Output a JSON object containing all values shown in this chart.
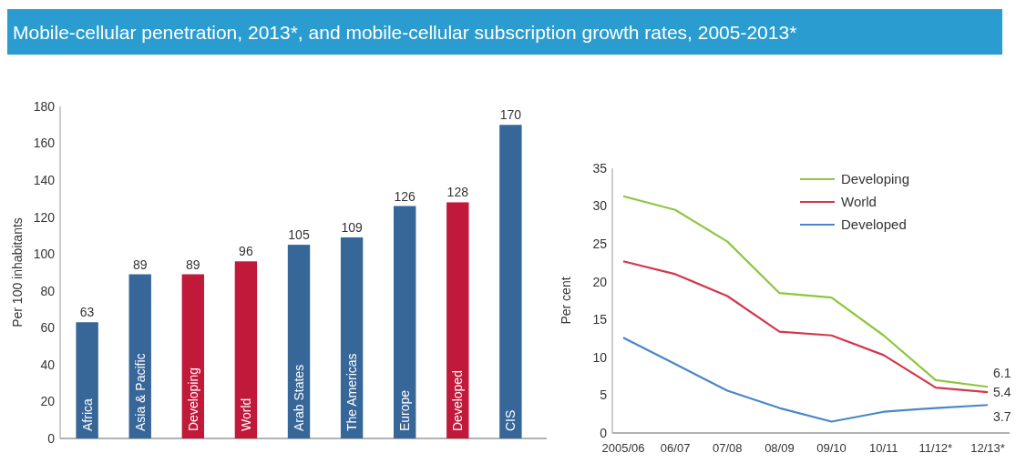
{
  "chart_data": [
    {
      "type": "bar",
      "title": "Mobile-cellular penetration, 2013*, and mobile-cellular subscription growth rates, 2005-2013*",
      "ylabel": "Per 100 inhabitants",
      "categories": [
        "Africa",
        "Asia & Pacific",
        "Developing",
        "World",
        "Arab States",
        "The Americas",
        "Europe",
        "Developed",
        "CIS"
      ],
      "values": [
        63,
        89,
        89,
        96,
        105,
        109,
        126,
        128,
        170
      ],
      "colors": [
        "#376699",
        "#376699",
        "#c0193a",
        "#c0193a",
        "#376699",
        "#376699",
        "#376699",
        "#c0193a",
        "#376699"
      ],
      "ylim": [
        0,
        180
      ],
      "yticks": [
        0,
        20,
        40,
        60,
        80,
        100,
        120,
        140,
        160,
        180
      ],
      "data_labels": true
    },
    {
      "type": "line",
      "ylabel": "Per cent",
      "categories": [
        "2005/06",
        "06/07",
        "07/08",
        "08/09",
        "09/10",
        "10/11",
        "11/12*",
        "12/13*"
      ],
      "ylim": [
        0,
        35
      ],
      "yticks": [
        0,
        5,
        10,
        15,
        20,
        25,
        30,
        35
      ],
      "legend": "top right",
      "series": [
        {
          "name": "Developing",
          "color": "#8dc63f",
          "values": [
            31.3,
            29.5,
            25.3,
            18.5,
            17.9,
            12.9,
            7.0,
            6.1
          ],
          "value_labels": [
            null,
            null,
            null,
            null,
            null,
            null,
            null,
            "6.1"
          ]
        },
        {
          "name": "World",
          "color": "#d2384a",
          "values": [
            22.7,
            21.0,
            18.1,
            13.4,
            12.9,
            10.3,
            6.0,
            5.4
          ],
          "value_labels": [
            null,
            null,
            null,
            null,
            null,
            null,
            null,
            "5.4"
          ]
        },
        {
          "name": "Developed",
          "color": "#4a86c8",
          "values": [
            12.6,
            9.1,
            5.6,
            3.3,
            1.5,
            2.8,
            3.3,
            3.7
          ],
          "value_labels": [
            null,
            null,
            null,
            null,
            null,
            null,
            null,
            "3.7"
          ]
        }
      ]
    }
  ]
}
